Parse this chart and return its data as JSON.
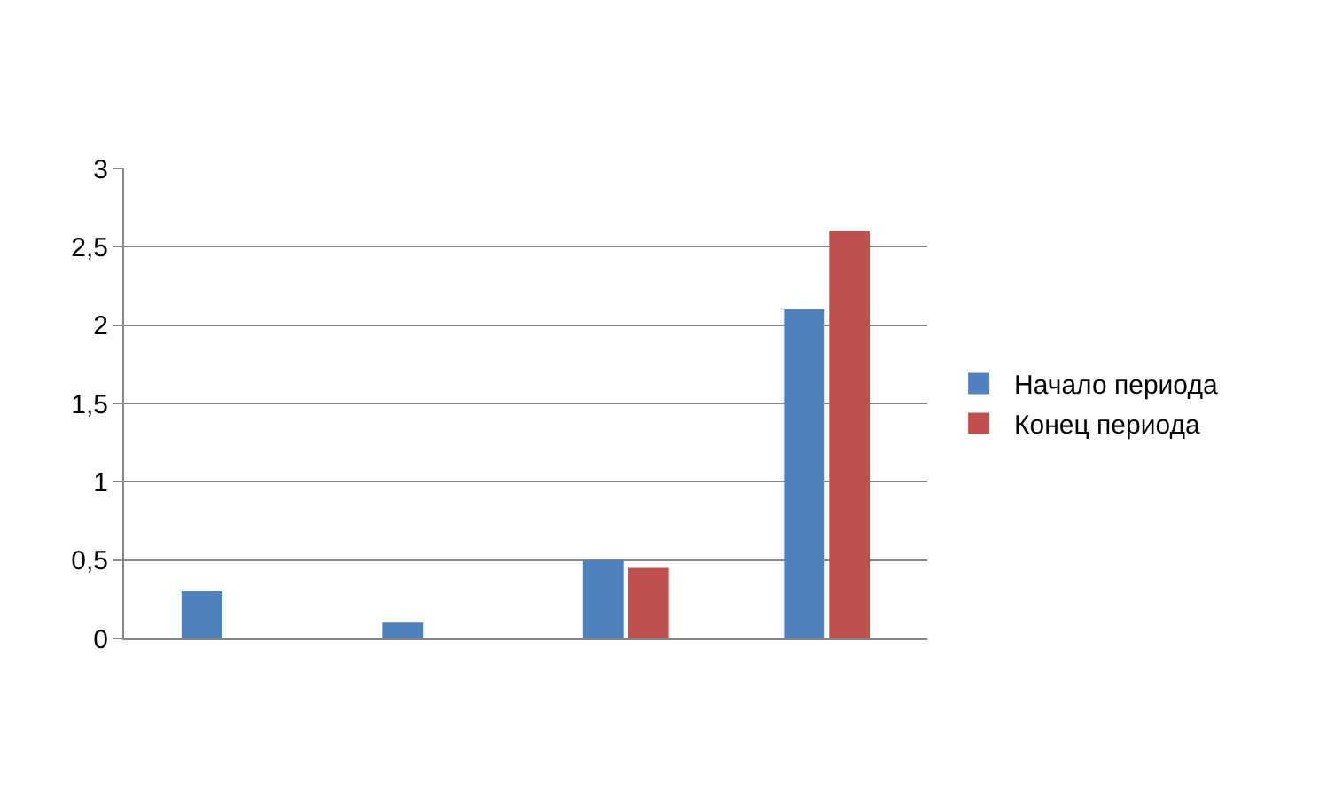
{
  "chart_data": {
    "type": "bar",
    "categories": [
      null,
      null,
      null,
      null
    ],
    "series": [
      {
        "name": "Начало периода",
        "color": "#4f81bd",
        "values": [
          0.3,
          0.1,
          0.5,
          2.1
        ]
      },
      {
        "name": "Конец периода",
        "color": "#c0504d",
        "values": [
          0,
          0,
          0.45,
          2.6
        ]
      }
    ],
    "ylim": [
      0,
      3
    ],
    "yticks": [
      0,
      {
        "value": 0.5,
        "label": "0,5"
      },
      1,
      {
        "value": 1.5,
        "label": "1,5"
      },
      2,
      {
        "value": 2.5,
        "label": "2,5"
      },
      3
    ],
    "grid": "y",
    "legend": "right",
    "tick_labels": "y"
  }
}
